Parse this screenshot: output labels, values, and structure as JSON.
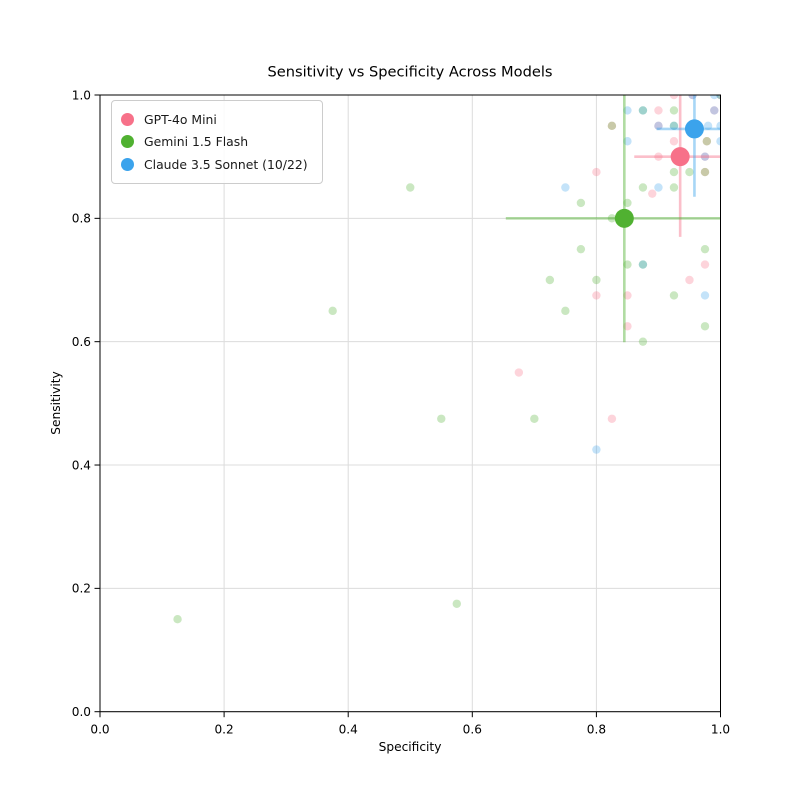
{
  "title": "Sensitivity vs Specificity Across Models",
  "xlabel": "Specificity",
  "ylabel": "Sensitivity",
  "legend": {
    "position": "upper left",
    "items": [
      {
        "label": "GPT-4o Mini",
        "color": "#f77189"
      },
      {
        "label": "Gemini 1.5 Flash",
        "color": "#50b131"
      },
      {
        "label": "Claude 3.5 Sonnet (10/22)",
        "color": "#3ba3ec"
      }
    ]
  },
  "chart_data": {
    "type": "scatter",
    "title": "Sensitivity vs Specificity Across Models",
    "xlabel": "Specificity",
    "ylabel": "Sensitivity",
    "xlim": [
      0.0,
      1.0
    ],
    "ylim": [
      0.0,
      1.0
    ],
    "xticks": [
      0.0,
      0.2,
      0.4,
      0.6,
      0.8,
      1.0
    ],
    "yticks": [
      0.0,
      0.2,
      0.4,
      0.6,
      0.8,
      1.0
    ],
    "xtick_labels": [
      "0.0",
      "0.2",
      "0.4",
      "0.6",
      "0.8",
      "1.0"
    ],
    "ytick_labels": [
      "0.0",
      "0.2",
      "0.4",
      "0.6",
      "0.8",
      "1.0"
    ],
    "grid": true,
    "legend_position": "upper left",
    "series": [
      {
        "name": "GPT-4o Mini",
        "color": "#f77189",
        "mean": {
          "x": 0.935,
          "y": 0.9
        },
        "xerr_bar": [
          0.861,
          1.0
        ],
        "yerr_bar": [
          0.77,
          1.0
        ],
        "points": [
          [
            0.925,
            1.0
          ],
          [
            0.955,
            1.0
          ],
          [
            1.0,
            1.0
          ],
          [
            0.9,
            0.975
          ],
          [
            0.99,
            0.975
          ],
          [
            0.825,
            0.95
          ],
          [
            0.9,
            0.95
          ],
          [
            0.925,
            0.925
          ],
          [
            0.978,
            0.925
          ],
          [
            0.9,
            0.9
          ],
          [
            0.975,
            0.9
          ],
          [
            0.8,
            0.875
          ],
          [
            0.975,
            0.875
          ],
          [
            0.89,
            0.84
          ],
          [
            0.975,
            0.725
          ],
          [
            0.95,
            0.7
          ],
          [
            0.8,
            0.675
          ],
          [
            0.85,
            0.675
          ],
          [
            0.85,
            0.625
          ],
          [
            0.675,
            0.55
          ],
          [
            0.825,
            0.475
          ]
        ]
      },
      {
        "name": "Gemini 1.5 Flash",
        "color": "#50b131",
        "mean": {
          "x": 0.845,
          "y": 0.8
        },
        "xerr_bar": [
          0.654,
          1.0
        ],
        "yerr_bar": [
          0.599,
          1.0
        ],
        "points": [
          [
            1.0,
            1.0
          ],
          [
            0.875,
            0.975
          ],
          [
            0.925,
            0.975
          ],
          [
            0.825,
            0.95
          ],
          [
            0.925,
            0.95
          ],
          [
            0.978,
            0.925
          ],
          [
            0.925,
            0.875
          ],
          [
            0.95,
            0.875
          ],
          [
            0.975,
            0.875
          ],
          [
            0.5,
            0.85
          ],
          [
            0.875,
            0.85
          ],
          [
            0.925,
            0.85
          ],
          [
            0.775,
            0.825
          ],
          [
            0.85,
            0.825
          ],
          [
            0.825,
            0.8
          ],
          [
            0.775,
            0.75
          ],
          [
            0.975,
            0.75
          ],
          [
            0.85,
            0.725
          ],
          [
            0.875,
            0.725
          ],
          [
            0.725,
            0.7
          ],
          [
            0.8,
            0.7
          ],
          [
            0.925,
            0.675
          ],
          [
            0.375,
            0.65
          ],
          [
            0.75,
            0.65
          ],
          [
            0.975,
            0.625
          ],
          [
            0.875,
            0.6
          ],
          [
            0.55,
            0.475
          ],
          [
            0.7,
            0.475
          ],
          [
            0.575,
            0.175
          ],
          [
            0.125,
            0.15
          ]
        ]
      },
      {
        "name": "Claude 3.5 Sonnet (10/22)",
        "color": "#3ba3ec",
        "mean": {
          "x": 0.958,
          "y": 0.945
        },
        "xerr_bar": [
          0.897,
          1.0
        ],
        "yerr_bar": [
          0.835,
          1.0
        ],
        "points": [
          [
            0.955,
            1.0
          ],
          [
            0.99,
            1.0
          ],
          [
            1.0,
            1.0
          ],
          [
            0.85,
            0.975
          ],
          [
            0.875,
            0.975
          ],
          [
            0.99,
            0.975
          ],
          [
            0.9,
            0.95
          ],
          [
            0.925,
            0.95
          ],
          [
            0.98,
            0.95
          ],
          [
            1.0,
            0.95
          ],
          [
            0.85,
            0.925
          ],
          [
            1.0,
            0.925
          ],
          [
            0.975,
            0.9
          ],
          [
            0.75,
            0.85
          ],
          [
            0.9,
            0.85
          ],
          [
            0.875,
            0.725
          ],
          [
            0.975,
            0.675
          ],
          [
            0.8,
            0.425
          ]
        ]
      }
    ]
  }
}
